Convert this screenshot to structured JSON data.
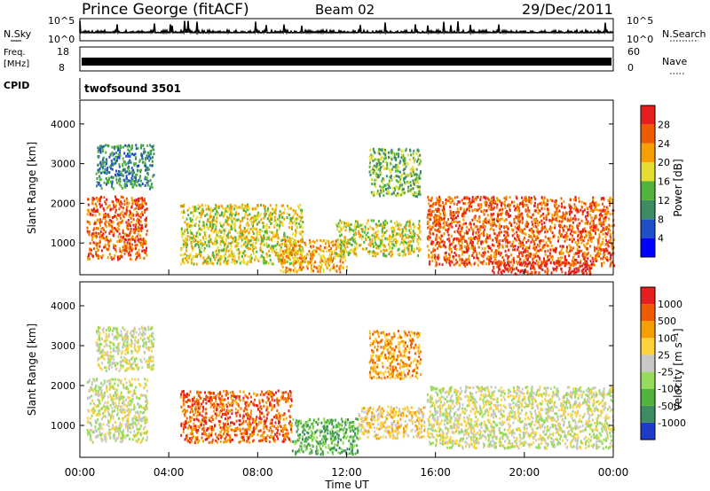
{
  "header": {
    "title": "Prince George (fitACF)",
    "beam": "Beam 02",
    "date": "29/Dec/2011"
  },
  "chart_data": [
    {
      "type": "line",
      "name": "noise-panel",
      "left_label": "N.Sky",
      "right_label": "N.Search",
      "left_ticks": [
        "10^5",
        "10^0"
      ],
      "right_ticks": [
        "10^5",
        "10^0"
      ]
    },
    {
      "type": "line",
      "name": "frequency-panel",
      "left_label_line1": "Freq.",
      "left_label_line2": "[MHz]",
      "right_label": "Nave",
      "left_ticks": [
        "18",
        "8"
      ],
      "right_ticks": [
        "60",
        "0"
      ],
      "cpid_label": "CPID",
      "cpid_value": "twofsound 3501"
    },
    {
      "type": "heatmap",
      "name": "power-panel",
      "ylabel": "Slant Range [km]",
      "yticks": [
        "4000",
        "3000",
        "2000",
        "1000"
      ],
      "ylim": [
        200,
        4600
      ],
      "colorbar_label": "Power [dB]",
      "colorbar_ticks": [
        "28",
        "24",
        "20",
        "16",
        "12",
        "8",
        "4"
      ],
      "colors": [
        "#0000ff",
        "#1e50c8",
        "#3c8c64",
        "#50b43c",
        "#e6dc32",
        "#f5a000",
        "#f05a00",
        "#e61e1e"
      ],
      "regions": [
        {
          "t0": 0.3,
          "t1": 3.0,
          "r0": 600,
          "r1": 2200,
          "level": 6
        },
        {
          "t0": 0.7,
          "t1": 3.3,
          "r0": 2400,
          "r1": 3500,
          "level": 2
        },
        {
          "t0": 4.5,
          "t1": 10.0,
          "r0": 500,
          "r1": 2000,
          "level": 4
        },
        {
          "t0": 9.0,
          "t1": 12.0,
          "r0": 300,
          "r1": 1100,
          "level": 5
        },
        {
          "t0": 11.5,
          "t1": 15.3,
          "r0": 700,
          "r1": 1600,
          "level": 4
        },
        {
          "t0": 13.0,
          "t1": 15.3,
          "r0": 2200,
          "r1": 3400,
          "level": 3
        },
        {
          "t0": 15.6,
          "t1": 24.0,
          "r0": 450,
          "r1": 2200,
          "level": 6
        },
        {
          "t0": 18.5,
          "t1": 23.0,
          "r0": 250,
          "r1": 550,
          "level": 7
        }
      ]
    },
    {
      "type": "heatmap",
      "name": "velocity-panel",
      "ylabel": "Slant Range [km]",
      "yticks": [
        "4000",
        "3000",
        "2000",
        "1000"
      ],
      "ylim": [
        200,
        4600
      ],
      "colorbar_label": "Velocity [m s⁻¹]",
      "colorbar_ticks": [
        "1000",
        "500",
        "100",
        "25",
        "-25",
        "-100",
        "-500",
        "-1000"
      ],
      "colors": [
        "#1e3cc8",
        "#3c8c64",
        "#50b43c",
        "#96dc5a",
        "#c8c8c8",
        "#ffd23c",
        "#f5a000",
        "#f05a00",
        "#e61e1e"
      ],
      "regions": [
        {
          "t0": 0.3,
          "t1": 3.0,
          "r0": 600,
          "r1": 2200,
          "level": 4
        },
        {
          "t0": 0.7,
          "t1": 3.3,
          "r0": 2400,
          "r1": 3500,
          "level": 4
        },
        {
          "t0": 4.5,
          "t1": 9.5,
          "r0": 600,
          "r1": 1900,
          "level": 7
        },
        {
          "t0": 9.5,
          "t1": 12.5,
          "r0": 300,
          "r1": 1200,
          "level": 2
        },
        {
          "t0": 12.5,
          "t1": 15.5,
          "r0": 700,
          "r1": 1500,
          "level": 5
        },
        {
          "t0": 15.6,
          "t1": 24.0,
          "r0": 450,
          "r1": 2000,
          "level": 4
        },
        {
          "t0": 13.0,
          "t1": 15.3,
          "r0": 2200,
          "r1": 3400,
          "level": 6
        }
      ],
      "xlabel": "Time UT",
      "xticks": [
        "00:00",
        "04:00",
        "08:00",
        "12:00",
        "16:00",
        "20:00",
        "00:00"
      ],
      "xlim": [
        0,
        24
      ]
    }
  ]
}
